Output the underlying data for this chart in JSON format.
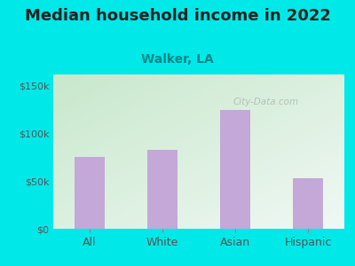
{
  "categories": [
    "All",
    "White",
    "Asian",
    "Hispanic"
  ],
  "values": [
    75000,
    83000,
    125000,
    53000
  ],
  "bar_color": "#c4a8d8",
  "title": "Median household income in 2022",
  "subtitle": "Walker, LA",
  "subtitle_color": "#008888",
  "title_color": "#222222",
  "title_fontsize": 13,
  "subtitle_fontsize": 10,
  "background_color": "#00e8e8",
  "ytick_labels": [
    "$0",
    "$50k",
    "$100k",
    "$150k"
  ],
  "ytick_values": [
    0,
    50000,
    100000,
    150000
  ],
  "ylim": [
    0,
    162000
  ],
  "tick_color": "#555555",
  "watermark": "City-Data.com",
  "plot_grad_top_left": "#c8e8cc",
  "plot_grad_bottom_right": "#f0f8f4"
}
